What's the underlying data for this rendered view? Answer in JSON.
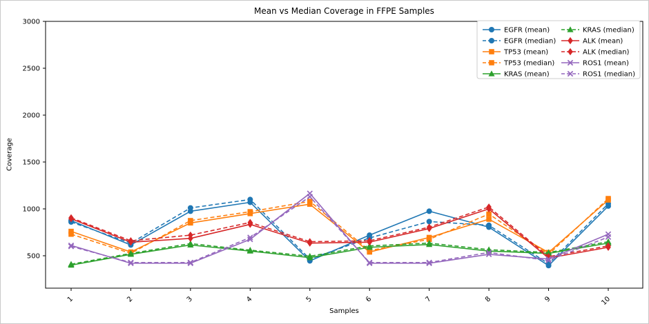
{
  "figure": {
    "background": "#ffffff",
    "border_color": "#c9c9c9"
  },
  "chart_data": {
    "type": "line",
    "title": "Mean vs Median Coverage in FFPE Samples",
    "xlabel": "Samples",
    "ylabel": "Coverage",
    "x": [
      1,
      2,
      3,
      4,
      5,
      6,
      7,
      8,
      9,
      10
    ],
    "yticks": [
      500,
      1000,
      1500,
      2000,
      2500,
      3000
    ],
    "ylim": [
      150,
      3000
    ],
    "grid": false,
    "legend": {
      "position": "upper right",
      "columns": 2
    },
    "series": [
      {
        "name": "EGFR (mean)",
        "gene": "EGFR",
        "stat": "mean",
        "color": "#1f77b4",
        "marker": "circle",
        "line_style": "solid",
        "values": [
          875,
          615,
          975,
          1070,
          445,
          720,
          975,
          805,
          395,
          1030
        ]
      },
      {
        "name": "EGFR (median)",
        "gene": "EGFR",
        "stat": "median",
        "color": "#1f77b4",
        "marker": "circle",
        "line_style": "dashed",
        "values": [
          860,
          635,
          1010,
          1100,
          465,
          690,
          865,
          825,
          415,
          1055
        ]
      },
      {
        "name": "TP53 (mean)",
        "gene": "TP53",
        "stat": "mean",
        "color": "#ff7f0e",
        "marker": "square",
        "line_style": "solid",
        "values": [
          760,
          540,
          850,
          950,
          1050,
          540,
          695,
          890,
          535,
          1095
        ]
      },
      {
        "name": "TP53 (median)",
        "gene": "TP53",
        "stat": "median",
        "color": "#ff7f0e",
        "marker": "square",
        "line_style": "dashed",
        "values": [
          730,
          525,
          875,
          970,
          1080,
          555,
          675,
          945,
          515,
          1110
        ]
      },
      {
        "name": "KRAS (mean)",
        "gene": "KRAS",
        "stat": "mean",
        "color": "#2ca02c",
        "marker": "triangle",
        "line_style": "solid",
        "values": [
          400,
          515,
          615,
          550,
          480,
          590,
          620,
          550,
          525,
          635
        ]
      },
      {
        "name": "KRAS (median)",
        "gene": "KRAS",
        "stat": "median",
        "color": "#2ca02c",
        "marker": "triangle",
        "line_style": "dashed",
        "values": [
          410,
          525,
          630,
          560,
          495,
          605,
          635,
          565,
          535,
          650
        ]
      },
      {
        "name": "ALK (mean)",
        "gene": "ALK",
        "stat": "mean",
        "color": "#d62728",
        "marker": "diamond",
        "line_style": "solid",
        "values": [
          895,
          645,
          685,
          835,
          635,
          645,
          790,
          1000,
          475,
          590
        ]
      },
      {
        "name": "ALK (median)",
        "gene": "ALK",
        "stat": "median",
        "color": "#d62728",
        "marker": "diamond",
        "line_style": "dashed",
        "values": [
          905,
          660,
          720,
          855,
          650,
          660,
          805,
          1020,
          490,
          605
        ]
      },
      {
        "name": "ROS1 (mean)",
        "gene": "ROS1",
        "stat": "mean",
        "color": "#9467bd",
        "marker": "x",
        "line_style": "solid",
        "values": [
          610,
          420,
          420,
          675,
          1165,
          420,
          420,
          515,
          465,
          730
        ]
      },
      {
        "name": "ROS1 (median)",
        "gene": "ROS1",
        "stat": "median",
        "color": "#9467bd",
        "marker": "x",
        "line_style": "dashed",
        "values": [
          600,
          428,
          428,
          695,
          1130,
          428,
          428,
          535,
          450,
          700
        ]
      }
    ]
  }
}
